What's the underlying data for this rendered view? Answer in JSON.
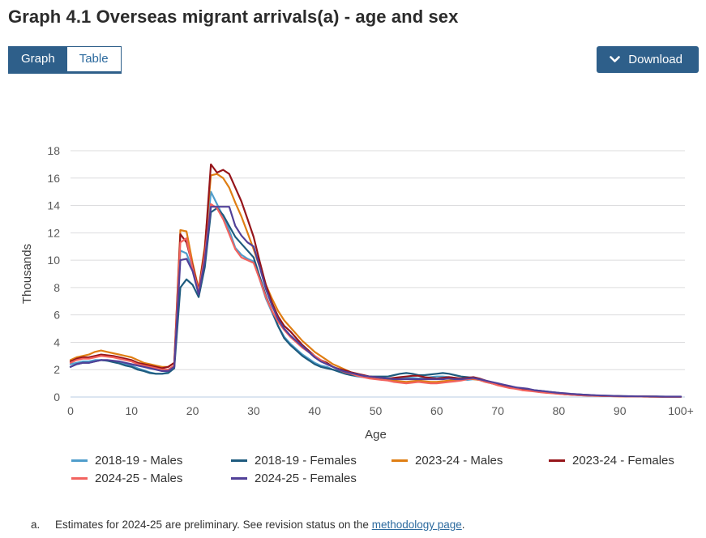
{
  "header": {
    "title": "Graph 4.1 Overseas migrant arrivals(a) - age and sex"
  },
  "view_toggle": {
    "graph_label": "Graph",
    "table_label": "Table",
    "active": "Graph"
  },
  "download": {
    "label": "Download"
  },
  "colors": {
    "primary_blue": "#2e5f8a",
    "link_blue": "#2c6a9e",
    "gridline": "#dcdcde",
    "baseline": "#b9cde3"
  },
  "chart_data": {
    "type": "line",
    "title": "Graph 4.1 Overseas migrant arrivals(a) - age and sex",
    "xlabel": "Age",
    "ylabel": "Thousands",
    "xlim": [
      0,
      100
    ],
    "ylim": [
      0,
      18
    ],
    "grid": "horizontal",
    "legend_position": "bottom",
    "x_ticks": [
      0,
      10,
      20,
      30,
      40,
      50,
      60,
      70,
      80,
      90,
      100
    ],
    "x_tick_labels": [
      "0",
      "10",
      "20",
      "30",
      "40",
      "50",
      "60",
      "70",
      "80",
      "90",
      "100+"
    ],
    "y_ticks": [
      0,
      2,
      4,
      6,
      8,
      10,
      12,
      14,
      16,
      18
    ],
    "x_unit": "single year of age, 0 to 100+",
    "series": [
      {
        "name": "2018-19 - Males",
        "color": "#4f9dcb",
        "values": [
          2.4,
          2.5,
          2.6,
          2.6,
          2.7,
          2.7,
          2.65,
          2.6,
          2.5,
          2.4,
          2.3,
          2.1,
          1.95,
          1.8,
          1.7,
          1.7,
          1.8,
          2.2,
          10.7,
          10.5,
          9.3,
          7.6,
          10.3,
          15.0,
          14.1,
          13.2,
          12.2,
          10.9,
          10.4,
          10.1,
          9.9,
          8.6,
          7.2,
          6.2,
          5.2,
          4.4,
          3.9,
          3.5,
          3.1,
          2.8,
          2.5,
          2.3,
          2.2,
          2.0,
          1.9,
          1.7,
          1.6,
          1.5,
          1.45,
          1.4,
          1.4,
          1.4,
          1.35,
          1.3,
          1.35,
          1.4,
          1.4,
          1.35,
          1.4,
          1.45,
          1.5,
          1.5,
          1.45,
          1.4,
          1.3,
          1.25,
          1.3,
          1.25,
          1.1,
          1.0,
          0.9,
          0.8,
          0.7,
          0.65,
          0.6,
          0.5,
          0.45,
          0.4,
          0.35,
          0.3,
          0.25,
          0.22,
          0.2,
          0.17,
          0.15,
          0.12,
          0.1,
          0.09,
          0.08,
          0.07,
          0.06,
          0.05,
          0.05,
          0.04,
          0.04,
          0.03,
          0.03,
          0.02,
          0.02,
          0.02,
          0.02
        ]
      },
      {
        "name": "2018-19 - Females",
        "color": "#1e5b7e",
        "values": [
          2.2,
          2.4,
          2.5,
          2.5,
          2.6,
          2.7,
          2.65,
          2.55,
          2.45,
          2.3,
          2.2,
          2.0,
          1.9,
          1.75,
          1.7,
          1.7,
          1.75,
          2.1,
          8.0,
          8.6,
          8.2,
          7.3,
          9.5,
          13.5,
          13.8,
          13.3,
          12.5,
          11.7,
          11.2,
          10.7,
          10.2,
          8.8,
          7.4,
          6.3,
          5.2,
          4.3,
          3.8,
          3.4,
          3.0,
          2.7,
          2.4,
          2.2,
          2.1,
          2.0,
          1.85,
          1.7,
          1.6,
          1.55,
          1.5,
          1.5,
          1.5,
          1.5,
          1.5,
          1.6,
          1.7,
          1.75,
          1.7,
          1.6,
          1.6,
          1.65,
          1.7,
          1.75,
          1.7,
          1.6,
          1.5,
          1.45,
          1.4,
          1.3,
          1.15,
          1.0,
          0.9,
          0.8,
          0.75,
          0.7,
          0.6,
          0.55,
          0.5,
          0.45,
          0.4,
          0.35,
          0.3,
          0.25,
          0.22,
          0.2,
          0.17,
          0.15,
          0.12,
          0.1,
          0.09,
          0.08,
          0.07,
          0.06,
          0.05,
          0.05,
          0.04,
          0.04,
          0.03,
          0.03,
          0.02,
          0.02,
          0.02
        ]
      },
      {
        "name": "2023-24 - Males",
        "color": "#df7e13",
        "values": [
          2.7,
          2.9,
          3.0,
          3.1,
          3.3,
          3.4,
          3.3,
          3.2,
          3.1,
          3.0,
          2.9,
          2.7,
          2.5,
          2.4,
          2.3,
          2.2,
          2.2,
          2.5,
          12.2,
          12.1,
          9.8,
          7.9,
          11.0,
          16.2,
          16.3,
          16.0,
          15.3,
          14.2,
          13.2,
          12.0,
          10.8,
          9.5,
          8.2,
          7.2,
          6.3,
          5.6,
          5.1,
          4.6,
          4.1,
          3.7,
          3.3,
          3.0,
          2.7,
          2.4,
          2.2,
          2.0,
          1.8,
          1.7,
          1.55,
          1.45,
          1.4,
          1.3,
          1.25,
          1.2,
          1.15,
          1.1,
          1.15,
          1.2,
          1.15,
          1.1,
          1.1,
          1.15,
          1.2,
          1.25,
          1.3,
          1.35,
          1.3,
          1.25,
          1.1,
          1.0,
          0.9,
          0.8,
          0.7,
          0.6,
          0.55,
          0.5,
          0.45,
          0.4,
          0.33,
          0.28,
          0.24,
          0.2,
          0.17,
          0.15,
          0.12,
          0.1,
          0.09,
          0.08,
          0.07,
          0.06,
          0.05,
          0.05,
          0.04,
          0.04,
          0.03,
          0.03,
          0.02,
          0.02,
          0.02,
          0.02,
          0.02
        ]
      },
      {
        "name": "2023-24 - Females",
        "color": "#96151a",
        "values": [
          2.6,
          2.8,
          2.9,
          2.9,
          3.0,
          3.1,
          3.05,
          3.0,
          2.9,
          2.8,
          2.7,
          2.5,
          2.4,
          2.3,
          2.2,
          2.1,
          2.2,
          2.5,
          11.9,
          11.3,
          9.6,
          7.8,
          10.8,
          17.0,
          16.4,
          16.6,
          16.3,
          15.3,
          14.3,
          13.0,
          11.7,
          9.9,
          8.2,
          6.9,
          5.9,
          5.2,
          4.8,
          4.3,
          3.8,
          3.4,
          3.0,
          2.7,
          2.5,
          2.2,
          2.05,
          1.95,
          1.8,
          1.7,
          1.6,
          1.5,
          1.45,
          1.4,
          1.35,
          1.4,
          1.45,
          1.5,
          1.55,
          1.55,
          1.45,
          1.4,
          1.35,
          1.4,
          1.45,
          1.4,
          1.35,
          1.4,
          1.45,
          1.35,
          1.2,
          1.05,
          0.95,
          0.85,
          0.75,
          0.65,
          0.6,
          0.5,
          0.45,
          0.4,
          0.35,
          0.3,
          0.25,
          0.2,
          0.18,
          0.15,
          0.13,
          0.11,
          0.1,
          0.09,
          0.08,
          0.07,
          0.06,
          0.05,
          0.05,
          0.04,
          0.04,
          0.03,
          0.03,
          0.02,
          0.02,
          0.02,
          0.02
        ]
      },
      {
        "name": "2024-25 - Males",
        "color": "#f2635f",
        "values": [
          2.5,
          2.7,
          2.8,
          2.8,
          2.9,
          3.0,
          2.95,
          2.9,
          2.8,
          2.7,
          2.6,
          2.4,
          2.3,
          2.2,
          2.1,
          2.0,
          2.0,
          2.3,
          11.3,
          11.6,
          9.4,
          7.7,
          10.4,
          14.1,
          13.8,
          13.0,
          11.9,
          10.8,
          10.2,
          10.0,
          9.8,
          8.6,
          7.3,
          6.3,
          5.5,
          4.9,
          4.4,
          4.0,
          3.6,
          3.3,
          3.0,
          2.7,
          2.4,
          2.2,
          2.0,
          1.8,
          1.7,
          1.55,
          1.45,
          1.35,
          1.3,
          1.25,
          1.2,
          1.1,
          1.05,
          1.0,
          1.05,
          1.1,
          1.05,
          1.0,
          1.0,
          1.05,
          1.1,
          1.15,
          1.2,
          1.3,
          1.35,
          1.25,
          1.1,
          1.0,
          0.85,
          0.75,
          0.65,
          0.6,
          0.5,
          0.45,
          0.4,
          0.35,
          0.3,
          0.27,
          0.23,
          0.2,
          0.17,
          0.14,
          0.12,
          0.1,
          0.09,
          0.08,
          0.07,
          0.06,
          0.05,
          0.05,
          0.04,
          0.04,
          0.03,
          0.03,
          0.02,
          0.02,
          0.02,
          0.02,
          0.02
        ]
      },
      {
        "name": "2024-25 - Females",
        "color": "#514098",
        "values": [
          2.2,
          2.4,
          2.5,
          2.5,
          2.6,
          2.7,
          2.7,
          2.65,
          2.6,
          2.5,
          2.4,
          2.3,
          2.2,
          2.1,
          2.0,
          1.9,
          1.9,
          2.2,
          10.0,
          10.1,
          9.2,
          7.5,
          10.0,
          13.9,
          13.9,
          13.9,
          13.9,
          12.5,
          11.8,
          11.3,
          11.0,
          9.5,
          7.9,
          6.7,
          5.7,
          5.0,
          4.5,
          4.1,
          3.7,
          3.3,
          2.9,
          2.6,
          2.4,
          2.2,
          2.0,
          1.85,
          1.75,
          1.65,
          1.55,
          1.5,
          1.45,
          1.4,
          1.35,
          1.3,
          1.3,
          1.3,
          1.3,
          1.3,
          1.3,
          1.3,
          1.3,
          1.3,
          1.35,
          1.3,
          1.3,
          1.35,
          1.4,
          1.3,
          1.2,
          1.1,
          1.0,
          0.9,
          0.8,
          0.7,
          0.65,
          0.6,
          0.5,
          0.45,
          0.4,
          0.35,
          0.3,
          0.27,
          0.23,
          0.2,
          0.17,
          0.15,
          0.13,
          0.11,
          0.1,
          0.08,
          0.07,
          0.06,
          0.06,
          0.05,
          0.05,
          0.04,
          0.04,
          0.03,
          0.03,
          0.03,
          0.03
        ]
      }
    ]
  },
  "footnote": {
    "marker": "a.",
    "text_before_link": "Estimates for 2024-25 are preliminary. See revision status on the ",
    "link_text": "methodology page",
    "text_after_link": "."
  }
}
